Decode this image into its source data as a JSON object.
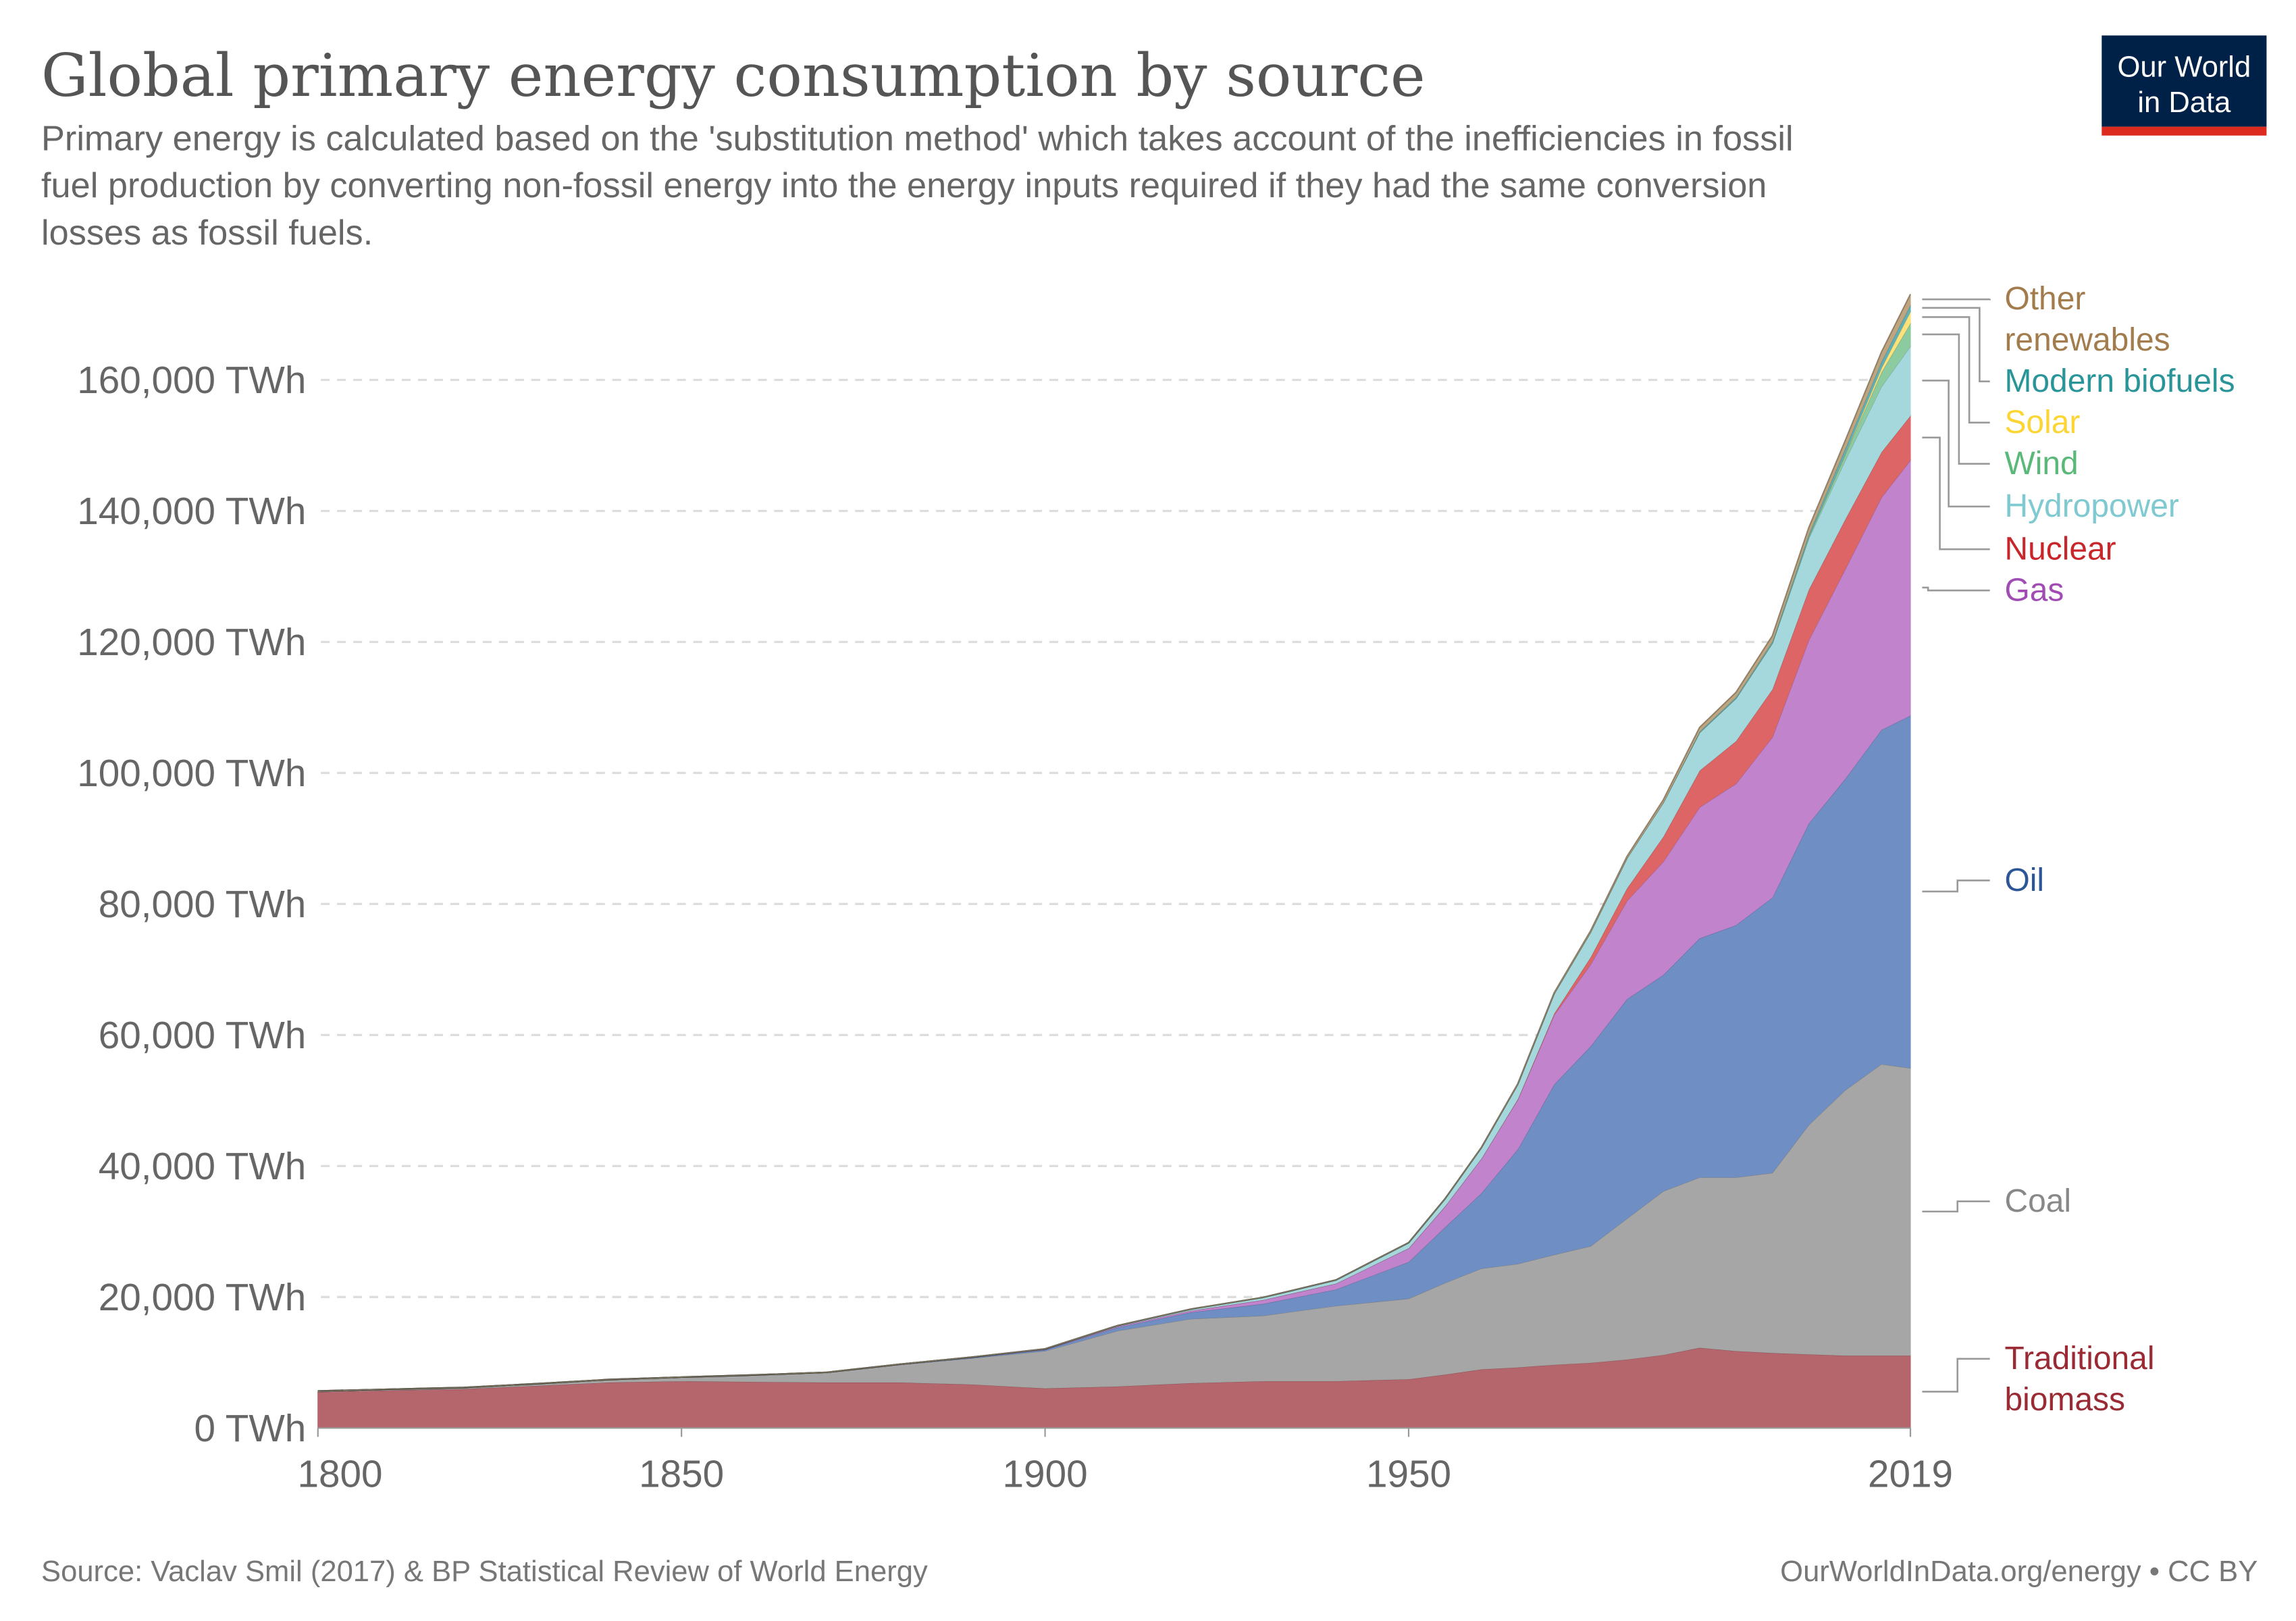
{
  "header": {
    "title": "Global primary energy consumption by source",
    "subtitle_lines": [
      "Primary energy is calculated based on the 'substitution method' which takes account of the inefficiencies in fossil",
      "fuel production by converting non-fossil energy into the energy inputs required if they had the same conversion",
      "losses as fossil fuels."
    ]
  },
  "logo": {
    "lines": [
      "Our World",
      "in Data"
    ],
    "bg_color": "#002147",
    "bar_color": "#dc2b1e"
  },
  "footer": {
    "source": "Source: Vaclav Smil (2017) & BP Statistical Review of World Energy",
    "credit": "OurWorldInData.org/energy • CC BY"
  },
  "chart_data": {
    "type": "area",
    "stacked": true,
    "ylim": [
      0,
      170000
    ],
    "xlim": [
      1800,
      2019
    ],
    "grid": "horizontal dashed",
    "legend_placement": "right (inline labels)",
    "x_ticks": [
      "1800",
      "1850",
      "1900",
      "1950",
      "2019"
    ],
    "y_ticks": [
      "0 TWh",
      "20,000 TWh",
      "40,000 TWh",
      "60,000 TWh",
      "80,000 TWh",
      "100,000 TWh",
      "120,000 TWh",
      "140,000 TWh",
      "160,000 TWh"
    ],
    "y_tick_values": [
      0,
      20000,
      40000,
      60000,
      80000,
      100000,
      120000,
      140000,
      160000
    ],
    "x": [
      1800,
      1810,
      1820,
      1830,
      1840,
      1850,
      1860,
      1870,
      1880,
      1890,
      1900,
      1910,
      1920,
      1930,
      1940,
      1950,
      1955,
      1960,
      1965,
      1970,
      1975,
      1980,
      1985,
      1990,
      1995,
      2000,
      2005,
      2010,
      2015,
      2019
    ],
    "series": [
      {
        "name": "Traditional biomass",
        "label_lines": [
          "Traditional",
          "biomass"
        ],
        "fill": "#b5666c",
        "text_color": "#9a2a33",
        "values": [
          5556,
          5800,
          6000,
          6500,
          7000,
          7200,
          7100,
          7000,
          7000,
          6700,
          6100,
          6400,
          6900,
          7200,
          7200,
          7500,
          8200,
          9000,
          9300,
          9700,
          10000,
          10500,
          11200,
          12300,
          11800,
          11500,
          11300,
          11100,
          11100,
          11100
        ]
      },
      {
        "name": "Coal",
        "label_lines": [
          "Coal"
        ],
        "fill": "#a6a6a6",
        "text_color": "#888888",
        "values": [
          97,
          130,
          180,
          260,
          400,
          570,
          1000,
          1500,
          2700,
          4000,
          5700,
          8500,
          9800,
          10000,
          11500,
          12300,
          14000,
          15400,
          15800,
          16800,
          17800,
          21500,
          25000,
          26000,
          26500,
          27500,
          35000,
          40500,
          44500,
          43900
        ]
      },
      {
        "name": "Oil",
        "label_lines": [
          "Oil"
        ],
        "fill": "#6f8fc4",
        "text_color": "#2d5697",
        "values": [
          0,
          0,
          0,
          0,
          0,
          0,
          0,
          5,
          30,
          100,
          180,
          500,
          1000,
          1800,
          2500,
          5600,
          8500,
          11500,
          17500,
          26000,
          30500,
          33500,
          33000,
          36500,
          38500,
          42000,
          46000,
          47500,
          51000,
          53800
        ]
      },
      {
        "name": "Gas",
        "label_lines": [
          "Gas"
        ],
        "fill": "#c183cc",
        "text_color": "#a04cb4",
        "values": [
          0,
          0,
          0,
          0,
          0,
          0,
          0,
          0,
          10,
          40,
          60,
          150,
          250,
          600,
          900,
          2100,
          3200,
          5300,
          7600,
          10600,
          12500,
          15000,
          17300,
          20000,
          21600,
          24500,
          28000,
          32000,
          35500,
          39000
        ]
      },
      {
        "name": "Nuclear",
        "label_lines": [
          "Nuclear"
        ],
        "fill": "#dd6565",
        "text_color": "#c8262a",
        "values": [
          0,
          0,
          0,
          0,
          0,
          0,
          0,
          0,
          0,
          0,
          0,
          0,
          0,
          0,
          0,
          0,
          0,
          1,
          70,
          220,
          1100,
          1900,
          3800,
          5600,
          6500,
          7300,
          7700,
          7600,
          6900,
          6800
        ]
      },
      {
        "name": "Hydropower",
        "label_lines": [
          "Hydropower"
        ],
        "fill": "#a5d8dc",
        "text_color": "#7fc9d0",
        "values": [
          0,
          0,
          0,
          0,
          0,
          0,
          0,
          0,
          0,
          0,
          50,
          100,
          200,
          350,
          500,
          800,
          1100,
          1600,
          2200,
          3000,
          3800,
          4600,
          5200,
          5800,
          6500,
          7000,
          7800,
          9000,
          10000,
          10600
        ]
      },
      {
        "name": "Wind",
        "label_lines": [
          "Wind"
        ],
        "fill": "#8ccaa0",
        "text_color": "#5ab878",
        "values": [
          0,
          0,
          0,
          0,
          0,
          0,
          0,
          0,
          0,
          0,
          0,
          0,
          0,
          0,
          0,
          0,
          0,
          0,
          0,
          0,
          0,
          0,
          0,
          10,
          20,
          80,
          260,
          900,
          2200,
          3500
        ]
      },
      {
        "name": "Solar",
        "label_lines": [
          "Solar"
        ],
        "fill": "#fde27a",
        "text_color": "#fcd535",
        "values": [
          0,
          0,
          0,
          0,
          0,
          0,
          0,
          0,
          0,
          0,
          0,
          0,
          0,
          0,
          0,
          0,
          0,
          0,
          0,
          0,
          0,
          0,
          0,
          0,
          0,
          3,
          10,
          80,
          650,
          1800
        ]
      },
      {
        "name": "Modern biofuels",
        "label_lines": [
          "Modern biofuels"
        ],
        "fill": "#5eb0b8",
        "text_color": "#2a9598",
        "values": [
          0,
          0,
          0,
          0,
          0,
          0,
          0,
          0,
          0,
          0,
          0,
          0,
          0,
          0,
          0,
          0,
          0,
          0,
          0,
          0,
          0,
          0,
          0,
          150,
          190,
          250,
          400,
          800,
          950,
          1000
        ]
      },
      {
        "name": "Other renewables",
        "label_lines": [
          "Other",
          "renewables"
        ],
        "fill": "#bfa57f",
        "text_color": "#a27c4d",
        "values": [
          0,
          0,
          0,
          0,
          0,
          0,
          0,
          0,
          0,
          0,
          0,
          0,
          0,
          0,
          0,
          0,
          0,
          50,
          100,
          150,
          200,
          250,
          400,
          600,
          700,
          800,
          950,
          1200,
          1450,
          1600
        ]
      }
    ]
  }
}
